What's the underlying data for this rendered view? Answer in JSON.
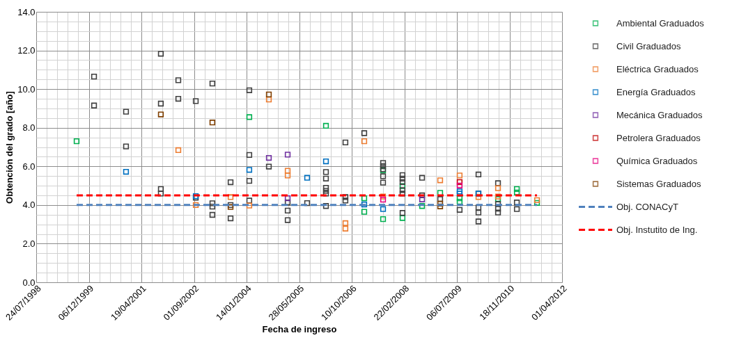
{
  "chart_data": {
    "type": "scatter",
    "xlabel": "Fecha de ingreso",
    "ylabel": "Obtención del grado [año]",
    "xlim": [
      "1998-07-24",
      "2012-04-01"
    ],
    "xticks": [
      {
        "value": "1998-07-24",
        "label": "24/07/1998"
      },
      {
        "value": "1999-12-06",
        "label": "06/12/1999"
      },
      {
        "value": "2001-04-19",
        "label": "19/04/2001"
      },
      {
        "value": "2002-09-01",
        "label": "01/09/2002"
      },
      {
        "value": "2004-01-14",
        "label": "14/01/2004"
      },
      {
        "value": "2005-05-28",
        "label": "28/05/2005"
      },
      {
        "value": "2006-10-10",
        "label": "10/10/2006"
      },
      {
        "value": "2008-02-22",
        "label": "22/02/2008"
      },
      {
        "value": "2009-07-06",
        "label": "06/07/2009"
      },
      {
        "value": "2010-11-18",
        "label": "18/11/2010"
      },
      {
        "value": "2012-04-01",
        "label": "01/04/2012"
      }
    ],
    "ylim": [
      0,
      14
    ],
    "yticks": [
      {
        "value": 0,
        "label": "0.0"
      },
      {
        "value": 2,
        "label": "2.0"
      },
      {
        "value": 4,
        "label": "4.0"
      },
      {
        "value": 6,
        "label": "6.0"
      },
      {
        "value": 8,
        "label": "8.0"
      },
      {
        "value": 10,
        "label": "10.0"
      },
      {
        "value": 12,
        "label": "12.0"
      },
      {
        "value": 14,
        "label": "14.0"
      }
    ],
    "grid": true,
    "legend": "right",
    "marker": "square",
    "series": [
      {
        "name": "Ambiental Graduados",
        "color": "#00b050",
        "x": [
          "1999-08-12",
          "2004-02-09",
          "2006-02-07",
          "2007-02-06",
          "2007-02-06",
          "2007-08-04",
          "2007-08-04",
          "2008-02-05",
          "2008-02-05",
          "2008-08-09",
          "2009-01-28",
          "2009-08-01",
          "2009-08-01",
          "2010-08-01",
          "2011-01-27",
          "2011-01-27",
          "2011-08-07"
        ],
        "values": [
          7.3,
          8.55,
          8.1,
          4.35,
          3.65,
          5.8,
          3.27,
          4.98,
          3.33,
          3.95,
          4.63,
          4.35,
          4.17,
          4.31,
          4.83,
          4.65,
          4.11
        ]
      },
      {
        "name": "Civil Graduados",
        "color": "#404040",
        "x": [
          "2000-01-25",
          "2000-01-25",
          "2000-11-24",
          "2000-11-24",
          "2001-10-21",
          "2001-10-21",
          "2001-10-21",
          "2001-10-21",
          "2002-04-05",
          "2002-04-05",
          "2002-09-18",
          "2002-09-18",
          "2003-02-23",
          "2003-02-23",
          "2003-02-23",
          "2003-02-23",
          "2003-08-15",
          "2003-08-15",
          "2003-08-15",
          "2004-02-09",
          "2004-02-09",
          "2004-02-09",
          "2004-02-09",
          "2004-08-13",
          "2005-02-08",
          "2005-02-08",
          "2005-02-08",
          "2005-08-12",
          "2006-02-07",
          "2006-02-07",
          "2006-02-07",
          "2006-02-07",
          "2006-02-07",
          "2006-02-07",
          "2006-08-11",
          "2006-08-11",
          "2006-08-11",
          "2007-02-06",
          "2007-08-04",
          "2007-08-04",
          "2007-08-04",
          "2007-08-04",
          "2007-08-04",
          "2008-02-05",
          "2008-02-05",
          "2008-02-05",
          "2008-02-05",
          "2008-02-05",
          "2008-02-05",
          "2008-08-09",
          "2008-08-09",
          "2009-01-28",
          "2009-08-01",
          "2010-01-27",
          "2010-01-27",
          "2010-01-27",
          "2010-01-27",
          "2010-01-27",
          "2010-08-01",
          "2010-08-01",
          "2010-08-01",
          "2010-08-01",
          "2011-01-27",
          "2011-01-27"
        ],
        "values": [
          10.65,
          9.15,
          8.83,
          7.03,
          11.83,
          9.25,
          4.83,
          4.59,
          10.46,
          9.5,
          9.38,
          4.38,
          10.29,
          4.09,
          3.92,
          3.49,
          5.18,
          4.0,
          3.31,
          9.94,
          6.59,
          5.25,
          4.23,
          5.99,
          4.13,
          3.71,
          3.22,
          4.1,
          5.71,
          5.37,
          4.89,
          4.74,
          4.59,
          3.95,
          7.24,
          4.41,
          4.23,
          7.72,
          6.18,
          6.01,
          5.85,
          5.49,
          5.16,
          5.55,
          5.37,
          5.19,
          4.77,
          4.59,
          3.59,
          5.41,
          4.5,
          4.31,
          3.75,
          5.58,
          4.59,
          3.87,
          3.61,
          3.15,
          5.13,
          4.05,
          3.81,
          3.61,
          4.13,
          3.79
        ]
      },
      {
        "name": "Eléctrica Graduados",
        "color": "#ed7d31",
        "x": [
          "2002-04-05",
          "2002-09-18",
          "2003-08-15",
          "2004-02-09",
          "2004-08-13",
          "2005-02-08",
          "2005-02-08",
          "2006-08-11",
          "2006-08-11",
          "2007-02-06",
          "2007-08-04",
          "2009-01-28",
          "2009-08-01",
          "2010-01-27",
          "2010-08-01",
          "2010-08-01",
          "2011-08-07"
        ],
        "values": [
          6.84,
          4.0,
          4.41,
          3.97,
          9.46,
          5.77,
          5.53,
          3.06,
          2.78,
          7.3,
          4.44,
          5.28,
          5.53,
          4.41,
          4.87,
          4.44,
          4.25
        ]
      },
      {
        "name": "Energía Graduados",
        "color": "#0070c0",
        "x": [
          "2000-11-24",
          "2002-09-18",
          "2004-02-09",
          "2005-08-12",
          "2006-02-07",
          "2007-02-06",
          "2007-08-04",
          "2009-08-01",
          "2009-08-01",
          "2010-01-27"
        ],
        "values": [
          5.72,
          4.46,
          5.82,
          5.41,
          6.26,
          4.03,
          3.79,
          4.7,
          4.59,
          4.59
        ]
      },
      {
        "name": "Mecánica Graduados",
        "color": "#7030a0",
        "x": [
          "2004-08-13",
          "2005-02-08",
          "2005-02-08",
          "2008-08-09"
        ],
        "values": [
          6.44,
          6.61,
          4.35,
          4.29
        ]
      },
      {
        "name": "Petrolera Graduados",
        "color": "#c00000",
        "x": [
          "2009-08-01"
        ],
        "values": [
          5.19
        ]
      },
      {
        "name": "Química Graduados",
        "color": "#e6007e",
        "x": [
          "2007-08-04",
          "2009-08-01"
        ],
        "values": [
          4.28,
          5.01
        ]
      },
      {
        "name": "Sistemas Graduados",
        "color": "#7f3f00",
        "x": [
          "2001-10-21",
          "2003-02-23",
          "2003-08-15",
          "2004-08-13",
          "2009-01-28",
          "2009-01-28"
        ],
        "values": [
          8.69,
          8.27,
          3.9,
          9.72,
          4.07,
          3.93
        ]
      },
      {
        "name": "Obj. CONACyT",
        "type": "line",
        "marker": "none",
        "line_style": "dashed",
        "color": "#4f81bd",
        "x": [
          "1999-08-12",
          "2011-08-07"
        ],
        "values": [
          4.0,
          4.0
        ]
      },
      {
        "name": "Obj. Instutito de Ing.",
        "type": "line",
        "marker": "none",
        "line_style": "dashed",
        "color": "#ff0000",
        "x": [
          "1999-08-12",
          "2011-08-07"
        ],
        "values": [
          4.5,
          4.5
        ]
      }
    ]
  }
}
